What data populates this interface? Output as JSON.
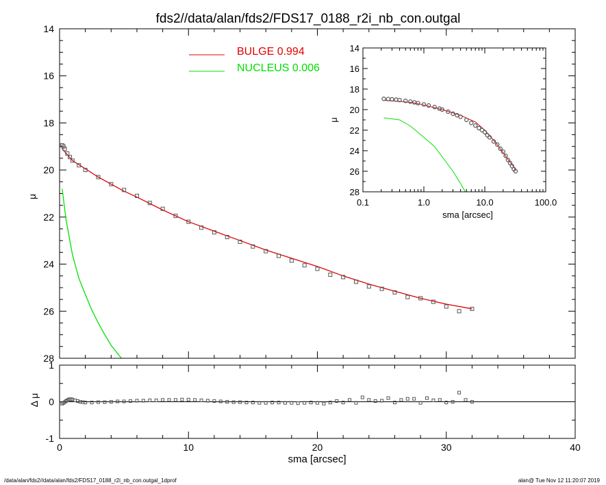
{
  "title": "fds2//data/alan/fds2/FDS17_0188_r2i_nb_con.outgal",
  "footer": {
    "left": "/data/alan/fds2//data/alan/fds2/FDS17_0188_r2i_nb_con.outgal_1dprof",
    "right": "alan@  Tue Nov 12 11:20:07 2019"
  },
  "colors": {
    "bulge": "#e00000",
    "nucleus": "#00e000",
    "data": "#555555",
    "axes": "#000000"
  },
  "chart_data": [
    {
      "id": "main",
      "type": "line",
      "ylabel": "μ",
      "xlim": [
        0,
        40
      ],
      "ylim": [
        28,
        14
      ],
      "y_inverted": true,
      "xticks": [
        0,
        10,
        20,
        30,
        40
      ],
      "yticks": [
        14,
        16,
        18,
        20,
        22,
        24,
        26,
        28
      ],
      "legend": {
        "placement": "top-center",
        "entries": [
          {
            "label": "BULGE  0.994",
            "color": "#e00000"
          },
          {
            "label": "NUCLEUS  0.006",
            "color": "#00e000"
          }
        ]
      },
      "series": [
        {
          "name": "BULGE",
          "kind": "line",
          "color": "#e00000",
          "x": [
            0.2,
            1.0,
            2.0,
            3.0,
            4.0,
            5.0,
            6.0,
            8.0,
            10.0,
            12.0,
            14.0,
            16.0,
            18.0,
            20.0,
            22.0,
            24.0,
            26.0,
            28.0,
            30.0,
            32.0
          ],
          "y": [
            19.1,
            19.6,
            19.95,
            20.3,
            20.6,
            20.9,
            21.15,
            21.7,
            22.2,
            22.6,
            23.0,
            23.4,
            23.75,
            24.1,
            24.5,
            24.85,
            25.15,
            25.45,
            25.7,
            25.9
          ]
        },
        {
          "name": "NUCLEUS",
          "kind": "line",
          "color": "#00e000",
          "x": [
            0.2,
            0.5,
            1.0,
            1.5,
            2.0,
            2.5,
            3.0,
            3.5,
            4.0,
            4.5,
            4.8
          ],
          "y": [
            20.8,
            22.1,
            23.6,
            24.6,
            25.3,
            25.95,
            26.5,
            27.0,
            27.45,
            27.8,
            28.0
          ]
        },
        {
          "name": "data",
          "kind": "markers",
          "color": "#555555",
          "x": [
            0.2,
            0.3,
            0.4,
            0.6,
            0.8,
            1.0,
            1.5,
            2.0,
            3.0,
            4.0,
            5.0,
            6.0,
            7.0,
            8.0,
            9.0,
            10.0,
            11.0,
            12.0,
            13.0,
            14.0,
            15.0,
            16.0,
            17.0,
            18.0,
            19.0,
            20.0,
            21.0,
            22.0,
            23.0,
            24.0,
            25.0,
            26.0,
            27.0,
            28.0,
            29.0,
            30.0,
            31.0,
            32.0
          ],
          "y": [
            18.95,
            19.0,
            19.1,
            19.3,
            19.45,
            19.6,
            19.8,
            20.0,
            20.3,
            20.6,
            20.85,
            21.1,
            21.4,
            21.65,
            21.95,
            22.2,
            22.45,
            22.65,
            22.85,
            23.05,
            23.25,
            23.45,
            23.65,
            23.85,
            24.05,
            24.2,
            24.45,
            24.55,
            24.75,
            24.95,
            25.05,
            25.2,
            25.4,
            25.45,
            25.6,
            25.8,
            26.0,
            25.9
          ]
        }
      ]
    },
    {
      "id": "inset",
      "type": "line",
      "xlabel": "sma [arcsec]",
      "ylabel": "μ",
      "xscale": "log",
      "xlim": [
        0.1,
        100
      ],
      "ylim": [
        28,
        14
      ],
      "y_inverted": true,
      "xtick_values": [
        0.1,
        1,
        10,
        100
      ],
      "xtick_labels": [
        "0.1",
        "1.0",
        "10.0",
        "100.0"
      ],
      "yticks": [
        14,
        16,
        18,
        20,
        22,
        24,
        26,
        28
      ],
      "series": [
        {
          "name": "BULGE",
          "kind": "line",
          "color": "#e00000",
          "x": [
            0.22,
            0.4,
            0.7,
            1,
            2,
            4,
            7,
            10,
            15,
            20,
            25,
            30,
            32
          ],
          "y": [
            19.1,
            19.2,
            19.35,
            19.55,
            20.0,
            20.55,
            21.2,
            22.0,
            23.2,
            24.2,
            25.0,
            25.6,
            25.9
          ]
        },
        {
          "name": "NUCLEUS",
          "kind": "line",
          "color": "#00e000",
          "x": [
            0.22,
            0.4,
            0.6,
            1,
            1.5,
            2,
            3,
            4,
            4.8
          ],
          "y": [
            20.8,
            21.0,
            21.6,
            22.7,
            23.6,
            24.6,
            26.0,
            27.2,
            28.0
          ]
        },
        {
          "name": "data",
          "kind": "markers",
          "color": "#555555",
          "x": [
            0.22,
            0.26,
            0.3,
            0.35,
            0.4,
            0.5,
            0.6,
            0.7,
            0.8,
            1.0,
            1.2,
            1.5,
            1.8,
            2.0,
            2.5,
            3.0,
            3.5,
            4.0,
            5.0,
            6.0,
            7.0,
            8.0,
            9.0,
            10.0,
            11.0,
            12.0,
            14.0,
            16.0,
            18.0,
            20.0,
            22.0,
            24.0,
            26.0,
            28.0,
            30.0,
            32.0
          ],
          "y": [
            18.95,
            18.97,
            19.0,
            19.03,
            19.07,
            19.15,
            19.22,
            19.3,
            19.37,
            19.5,
            19.6,
            19.75,
            19.9,
            20.0,
            20.2,
            20.4,
            20.55,
            20.7,
            21.0,
            21.3,
            21.55,
            21.8,
            22.0,
            22.2,
            22.5,
            22.7,
            23.1,
            23.4,
            23.8,
            24.1,
            24.5,
            24.9,
            25.2,
            25.5,
            25.8,
            26.0
          ]
        }
      ]
    },
    {
      "id": "residuals",
      "type": "scatter",
      "xlabel": "sma [arcsec]",
      "ylabel": "Δ μ",
      "xlim": [
        0,
        40
      ],
      "ylim": [
        -1,
        1
      ],
      "xticks": [
        0,
        10,
        20,
        30,
        40
      ],
      "yticks": [
        -1,
        0,
        1
      ],
      "zero_line": true,
      "series": [
        {
          "name": "residuals",
          "kind": "markers",
          "color": "#555555",
          "x": [
            0.2,
            0.3,
            0.4,
            0.5,
            0.6,
            0.7,
            0.8,
            0.9,
            1.0,
            1.2,
            1.4,
            1.6,
            1.8,
            2.0,
            2.5,
            3.0,
            3.5,
            4.0,
            4.5,
            5.0,
            5.5,
            6.0,
            6.5,
            7.0,
            7.5,
            8.0,
            8.5,
            9.0,
            9.5,
            10.0,
            10.5,
            11.0,
            11.5,
            12.0,
            12.5,
            13.0,
            13.5,
            14.0,
            14.5,
            15.0,
            15.5,
            16.0,
            16.5,
            17.0,
            17.5,
            18.0,
            18.5,
            19.0,
            19.5,
            20.0,
            20.5,
            21.0,
            21.5,
            22.0,
            22.5,
            23.0,
            23.5,
            24.0,
            24.5,
            25.0,
            25.5,
            26.0,
            26.5,
            27.0,
            27.5,
            28.0,
            28.5,
            29.0,
            29.5,
            30.0,
            30.5,
            31.0,
            31.5,
            32.0
          ],
          "y": [
            -0.05,
            -0.03,
            -0.01,
            0.02,
            0.04,
            0.06,
            0.07,
            0.07,
            0.06,
            0.04,
            0.02,
            0.0,
            -0.01,
            -0.02,
            -0.02,
            -0.01,
            -0.01,
            0.0,
            0.01,
            0.01,
            0.02,
            0.03,
            0.03,
            0.04,
            0.04,
            0.05,
            0.05,
            0.05,
            0.06,
            0.06,
            0.05,
            0.04,
            0.03,
            0.02,
            0.01,
            0.0,
            -0.01,
            -0.01,
            -0.02,
            -0.02,
            -0.03,
            -0.03,
            -0.02,
            -0.02,
            -0.03,
            -0.03,
            -0.04,
            -0.03,
            -0.02,
            -0.03,
            -0.05,
            -0.02,
            0.02,
            -0.02,
            0.05,
            -0.03,
            0.12,
            0.05,
            0.02,
            0.03,
            0.1,
            -0.02,
            0.05,
            0.08,
            0.08,
            -0.03,
            0.1,
            0.04,
            0.05,
            -0.02,
            0.0,
            0.25,
            0.05,
            0.0
          ]
        }
      ]
    }
  ]
}
